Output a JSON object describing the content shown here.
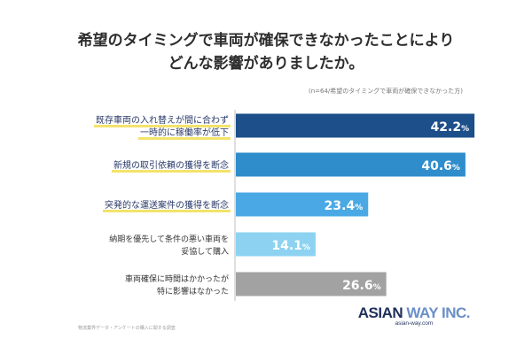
{
  "header": {
    "title_line1": "希望のタイミングで車両が確保できなかったことにより",
    "title_line2": "どんな影響がありましたか。",
    "sample_note": "(n=64/希望のタイミングで車両が確保できなかった方)"
  },
  "footer": {
    "footnote": "物流業界データ・アンケートの購入に関する調査"
  },
  "logo": {
    "main_left": "ASIAN ",
    "main_right": "WAY INC.",
    "sub": "asian-way.com"
  },
  "chart_data": {
    "type": "bar",
    "orientation": "horizontal",
    "unit": "%",
    "xlim": [
      0,
      45
    ],
    "categories": [
      [
        "既存車両の入れ替えが間に合わず",
        "一時的に稼働率が低下"
      ],
      [
        "新規の取引依頼の獲得を断念"
      ],
      [
        "突発的な運送案件の獲得を断念"
      ],
      [
        "納期を優先して条件の悪い車両を",
        "妥協して購入"
      ],
      [
        "車両確保に時間はかかったが",
        "特に影響はなかった"
      ]
    ],
    "values": [
      42.2,
      40.6,
      23.4,
      14.1,
      26.6
    ],
    "bar_colors": [
      "#1d4f8a",
      "#2f8dcc",
      "#4aa9e4",
      "#8dd3f1",
      "#a2a2a2"
    ],
    "highlighted": [
      true,
      true,
      true,
      false,
      false
    ],
    "highlight_color": "#f3e36b"
  }
}
